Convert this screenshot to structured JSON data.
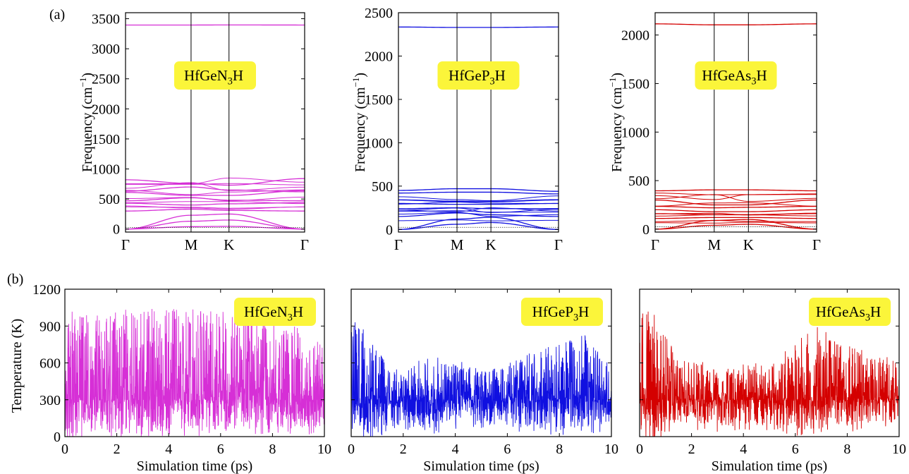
{
  "panel_labels": [
    "(a)",
    "(b)"
  ],
  "chart_data": [
    {
      "type": "line",
      "subtype": "phonon-dispersion",
      "label": "HfGeN3H",
      "label_base": "HfGeN",
      "label_sub": "3",
      "label_tail": "H",
      "color": "#d62fd6",
      "ylabel": "Frequency (cm",
      "ylabel_unit_suffix": ")",
      "ylabel_sup": "−1",
      "ylim": [
        -50,
        3600
      ],
      "yticks": [
        0,
        500,
        1000,
        1500,
        2000,
        2500,
        3000,
        3500
      ],
      "xtick_labels": [
        "Γ",
        "M",
        "K",
        "Γ"
      ],
      "xtick_pos": [
        0,
        0.577,
        0.911,
        1.577
      ],
      "branches_approx": {
        "high_branch": [
          3395,
          3395,
          3396,
          3395
        ],
        "optical_band_cm1": [
          0,
          850
        ],
        "representative": [
          [
            820,
            760,
            730,
            840
          ],
          [
            630,
            700,
            650,
            620
          ],
          [
            610,
            560,
            560,
            640
          ],
          [
            470,
            520,
            480,
            470
          ],
          [
            430,
            400,
            420,
            440
          ],
          [
            300,
            330,
            310,
            300
          ],
          [
            0,
            230,
            250,
            0
          ],
          [
            0,
            130,
            150,
            0
          ],
          [
            0,
            40,
            45,
            0
          ]
        ]
      }
    },
    {
      "type": "line",
      "subtype": "phonon-dispersion",
      "label": "HfGeP3H",
      "label_base": "HfGeP",
      "label_sub": "3",
      "label_tail": "H",
      "color": "#1010e0",
      "ylabel": "Frequency (cm",
      "ylabel_unit_suffix": ")",
      "ylabel_sup": "−1",
      "ylim": [
        -30,
        2500
      ],
      "yticks": [
        0,
        500,
        1000,
        1500,
        2000,
        2500
      ],
      "xtick_labels": [
        "Γ",
        "M",
        "K",
        "Γ"
      ],
      "xtick_pos": [
        0,
        0.577,
        0.911,
        1.577
      ],
      "branches_approx": {
        "high_branch": [
          2335,
          2330,
          2330,
          2335
        ],
        "optical_band_cm1": [
          0,
          480
        ],
        "representative": [
          [
            450,
            470,
            470,
            440
          ],
          [
            420,
            430,
            430,
            410
          ],
          [
            340,
            320,
            320,
            340
          ],
          [
            300,
            290,
            290,
            300
          ],
          [
            240,
            250,
            240,
            240
          ],
          [
            150,
            190,
            170,
            150
          ],
          [
            0,
            120,
            140,
            0
          ],
          [
            0,
            60,
            80,
            0
          ]
        ]
      }
    },
    {
      "type": "line",
      "subtype": "phonon-dispersion",
      "label": "HfGeAs3H",
      "label_base": "HfGeAs",
      "label_sub": "3",
      "label_tail": "H",
      "color": "#d40000",
      "ylabel": "Frequency (cm",
      "ylabel_unit_suffix": ")",
      "ylabel_sup": "−1",
      "ylim": [
        -30,
        2230
      ],
      "yticks": [
        0,
        500,
        1000,
        1500,
        2000
      ],
      "xtick_labels": [
        "Γ",
        "M",
        "K",
        "Γ"
      ],
      "xtick_pos": [
        0,
        0.577,
        0.911,
        1.577
      ],
      "branches_approx": {
        "high_branch": [
          2115,
          2105,
          2105,
          2115
        ],
        "optical_band_cm1": [
          0,
          410
        ],
        "representative": [
          [
            395,
            405,
            405,
            395
          ],
          [
            300,
            250,
            250,
            300
          ],
          [
            235,
            220,
            225,
            235
          ],
          [
            200,
            180,
            180,
            200
          ],
          [
            160,
            150,
            150,
            160
          ],
          [
            110,
            120,
            120,
            110
          ],
          [
            0,
            90,
            100,
            0
          ],
          [
            0,
            40,
            50,
            0
          ]
        ]
      }
    },
    {
      "type": "line",
      "subtype": "md-temperature",
      "label": "HfGeN3H",
      "label_base": "HfGeN",
      "label_sub": "3",
      "label_tail": "H",
      "color": "#d62fd6",
      "xlabel": "Simulation time (ps)",
      "ylabel": "Temperature (K)",
      "xlim": [
        0,
        10
      ],
      "ylim": [
        0,
        1200
      ],
      "xticks": [
        0,
        2,
        4,
        6,
        8,
        10
      ],
      "yticks": [
        0,
        300,
        600,
        900,
        1200
      ],
      "mean_K": 300,
      "envelope_K": [
        [
          0,
          0,
          1000
        ],
        [
          1,
          50,
          950
        ],
        [
          2.5,
          60,
          1000
        ],
        [
          5,
          60,
          1000
        ],
        [
          8,
          60,
          980
        ],
        [
          10,
          80,
          700
        ]
      ]
    },
    {
      "type": "line",
      "subtype": "md-temperature",
      "label": "HfGeP3H",
      "label_base": "HfGeP",
      "label_sub": "3",
      "label_tail": "H",
      "color": "#1010e0",
      "xlabel": "Simulation time (ps)",
      "xlim": [
        0,
        10
      ],
      "ylim": [
        0,
        1200
      ],
      "xticks": [
        0,
        2,
        4,
        6,
        8,
        10
      ],
      "mean_K": 300,
      "envelope_K": [
        [
          0,
          0,
          1000
        ],
        [
          1,
          60,
          650
        ],
        [
          2,
          120,
          500
        ],
        [
          3,
          80,
          650
        ],
        [
          5,
          120,
          520
        ],
        [
          7,
          80,
          650
        ],
        [
          9,
          60,
          790
        ],
        [
          10,
          120,
          520
        ]
      ]
    },
    {
      "type": "line",
      "subtype": "md-temperature",
      "label": "HfGeAs3H",
      "label_base": "HfGeAs",
      "label_sub": "3",
      "label_tail": "H",
      "color": "#d40000",
      "xlabel": "Simulation time (ps)",
      "xlim": [
        0,
        10
      ],
      "ylim": [
        0,
        1200
      ],
      "xticks": [
        0,
        2,
        4,
        6,
        8,
        10
      ],
      "mean_K": 300,
      "envelope_K": [
        [
          0,
          0,
          1000
        ],
        [
          0.5,
          0,
          980
        ],
        [
          1.5,
          120,
          600
        ],
        [
          3,
          100,
          550
        ],
        [
          5,
          80,
          560
        ],
        [
          6.8,
          50,
          880
        ],
        [
          8,
          100,
          700
        ],
        [
          10,
          120,
          600
        ]
      ]
    }
  ]
}
